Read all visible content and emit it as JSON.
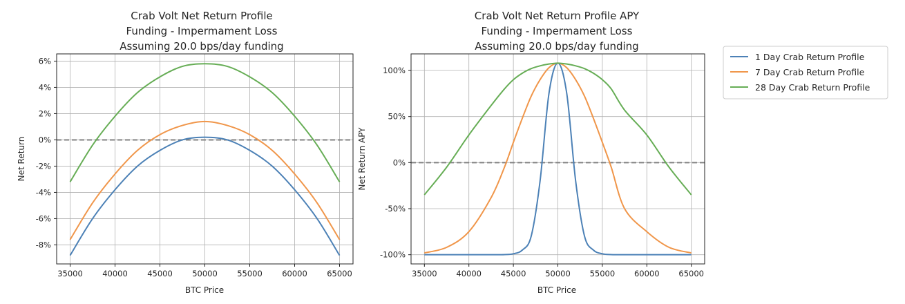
{
  "colors": {
    "series1": "#4c81b6",
    "series2": "#f0964a",
    "series3": "#66ad55",
    "zero_line": "#808080",
    "grid": "#b0b0b0"
  },
  "legend": {
    "placement": "right-outside"
  },
  "chart_data": [
    {
      "type": "line",
      "title_lines": [
        "Crab Volt Net Return Profile",
        "Funding - Impermament Loss",
        "Assuming 20.0 bps/day funding"
      ],
      "xlabel": "BTC Price",
      "ylabel": "Net Return",
      "xlim": [
        33500,
        66500
      ],
      "ylim": [
        -9.45,
        6.55
      ],
      "xticks": [
        35000,
        40000,
        45000,
        50000,
        55000,
        60000,
        65000
      ],
      "yticks": [
        6,
        4,
        2,
        0,
        -2,
        -4,
        -6,
        -8
      ],
      "ytick_labels": [
        "6%",
        "4%",
        "2%",
        "0%",
        "-2%",
        "-4%",
        "-6%",
        "-8%"
      ],
      "grid": true,
      "reference_line": 0,
      "x": [
        35000,
        37500,
        40000,
        42500,
        45000,
        47500,
        50000,
        52500,
        55000,
        57500,
        60000,
        62500,
        65000
      ],
      "series": [
        {
          "name": "1 Day Crab Return Profile",
          "values": [
            -8.8,
            -6.0,
            -3.8,
            -2.0,
            -0.8,
            -0.0,
            0.2,
            -0.0,
            -0.8,
            -2.0,
            -3.8,
            -6.0,
            -8.8
          ]
        },
        {
          "name": "7 Day Crab Return Profile",
          "values": [
            -7.6,
            -4.8,
            -2.6,
            -0.8,
            0.4,
            1.1,
            1.4,
            1.1,
            0.4,
            -0.8,
            -2.6,
            -4.8,
            -7.6
          ]
        },
        {
          "name": "28 Day Crab Return Profile",
          "values": [
            -3.2,
            -0.4,
            1.8,
            3.6,
            4.8,
            5.6,
            5.8,
            5.6,
            4.8,
            3.6,
            1.8,
            -0.4,
            -3.2
          ]
        }
      ]
    },
    {
      "type": "line",
      "title_lines": [
        "Crab Volt Net Return Profile APY",
        "Funding - Impermament Loss",
        "Assuming 20.0 bps/day funding"
      ],
      "xlabel": "BTC Price",
      "ylabel": "Net Return APY",
      "xlim": [
        33500,
        66500
      ],
      "ylim": [
        -110,
        118
      ],
      "xticks": [
        35000,
        40000,
        45000,
        50000,
        55000,
        60000,
        65000
      ],
      "yticks": [
        100,
        50,
        0,
        -50,
        -100
      ],
      "ytick_labels": [
        "100%",
        "50%",
        "0%",
        "-50%",
        "-100%"
      ],
      "grid": true,
      "reference_line": 0,
      "x": [
        35000,
        37500,
        40000,
        42500,
        44000,
        45000,
        46000,
        47000,
        48000,
        49000,
        50000,
        51000,
        52000,
        53000,
        54000,
        55000,
        56000,
        57500,
        60000,
        62500,
        65000
      ],
      "series": [
        {
          "name": "1 Day Crab Return Profile",
          "values": [
            -100,
            -100,
            -100,
            -100,
            -99.9,
            -99,
            -95,
            -80,
            -20,
            75,
            108,
            75,
            -20,
            -80,
            -95,
            -99,
            -99.9,
            -100,
            -100,
            -100,
            -100
          ]
        },
        {
          "name": "7 Day Crab Return Profile",
          "values": [
            -98,
            -92,
            -75,
            -38,
            -5,
            22,
            48,
            72,
            90,
            103,
            108,
            103,
            90,
            72,
            48,
            22,
            -5,
            -50,
            -75,
            -92,
            -98
          ]
        },
        {
          "name": "28 Day Crab Return Profile",
          "values": [
            -35,
            -5,
            30,
            62,
            80,
            90,
            97,
            102,
            105,
            107,
            108,
            107,
            105,
            102,
            97,
            90,
            80,
            57,
            30,
            -5,
            -35
          ]
        }
      ]
    }
  ]
}
